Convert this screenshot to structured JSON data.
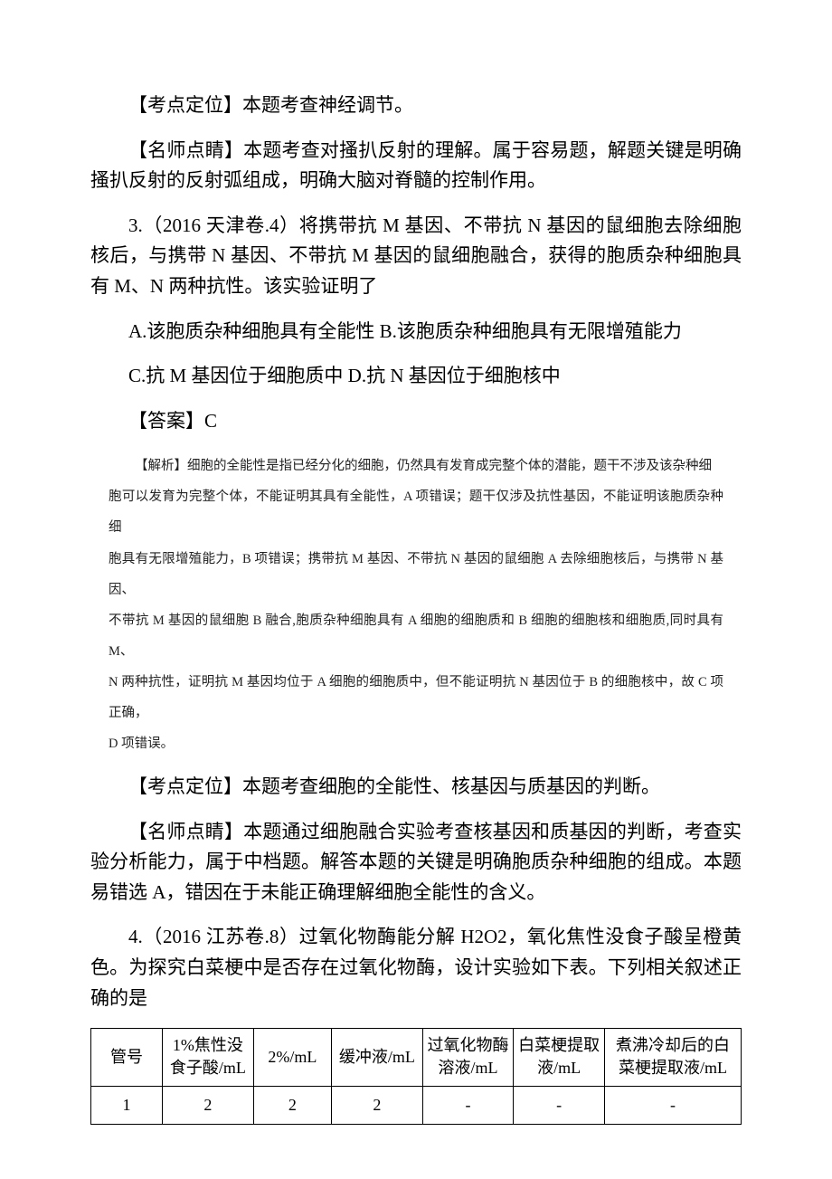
{
  "p1": "【考点定位】本题考查神经调节。",
  "p2": "【名师点睛】本题考查对搔扒反射的理解。属于容易题，解题关键是明确搔扒反射的反射弧组成，明确大脑对脊髓的控制作用。",
  "p3": "3.（2016 天津卷.4）将携带抗 M 基因、不带抗 N 基因的鼠细胞去除细胞核后，与携带 N 基因、不带抗 M 基因的鼠细胞融合，获得的胞质杂种细胞具有 M、N 两种抗性。该实验证明了",
  "p4": "A.该胞质杂种细胞具有全能性 B.该胞质杂种细胞具有无限增殖能力",
  "p5": "C.抗 M 基因位于细胞质中 D.抗 N 基因位于细胞核中",
  "p6": "【答案】C",
  "analysis": {
    "l1": "【解析】细胞的全能性是指已经分化的细胞，仍然具有发育成完整个体的潜能，题干不涉及该杂种细",
    "l2": "胞可以发育为完整个体，不能证明其具有全能性，A 项错误；题干仅涉及抗性基因，不能证明该胞质杂种细",
    "l3": "胞具有无限增殖能力，B 项错误；携带抗 M 基因、不带抗 N 基因的鼠细胞 A 去除细胞核后，与携带 N 基因、",
    "l4": "不带抗 M 基因的鼠细胞 B 融合,胞质杂种细胞具有 A 细胞的细胞质和 B 细胞的细胞核和细胞质,同时具有 M、",
    "l5": "N 两种抗性，证明抗 M 基因均位于 A 细胞的细胞质中，但不能证明抗 N 基因位于 B 的细胞核中，故 C 项正确，",
    "l6": "D 项错误。"
  },
  "p7": "【考点定位】本题考查细胞的全能性、核基因与质基因的判断。",
  "p8": "【名师点睛】本题通过细胞融合实验考查核基因和质基因的判断，考查实验分析能力，属于中档题。解答本题的关键是明确胞质杂种细胞的组成。本题易错选 A，错因在于未能正确理解细胞全能性的含义。",
  "p9": "4.（2016 江苏卷.8）过氧化物酶能分解 H2O2，氧化焦性没食子酸呈橙黄色。为探究白菜梗中是否存在过氧化物酶，设计实验如下表。下列相关叙述正确的是",
  "table": {
    "colWidths": [
      "11%",
      "14%",
      "12%",
      "14%",
      "14%",
      "14%",
      "21%"
    ],
    "headers": [
      "管号",
      "1%焦性没食子酸/mL",
      "2%/mL",
      "缓冲液/mL",
      "过氧化物酶溶液/mL",
      "白菜梗提取液/mL",
      "煮沸冷却后的白菜梗提取液/mL"
    ],
    "row1": [
      "1",
      "2",
      "2",
      "2",
      "-",
      "-",
      "-"
    ]
  }
}
